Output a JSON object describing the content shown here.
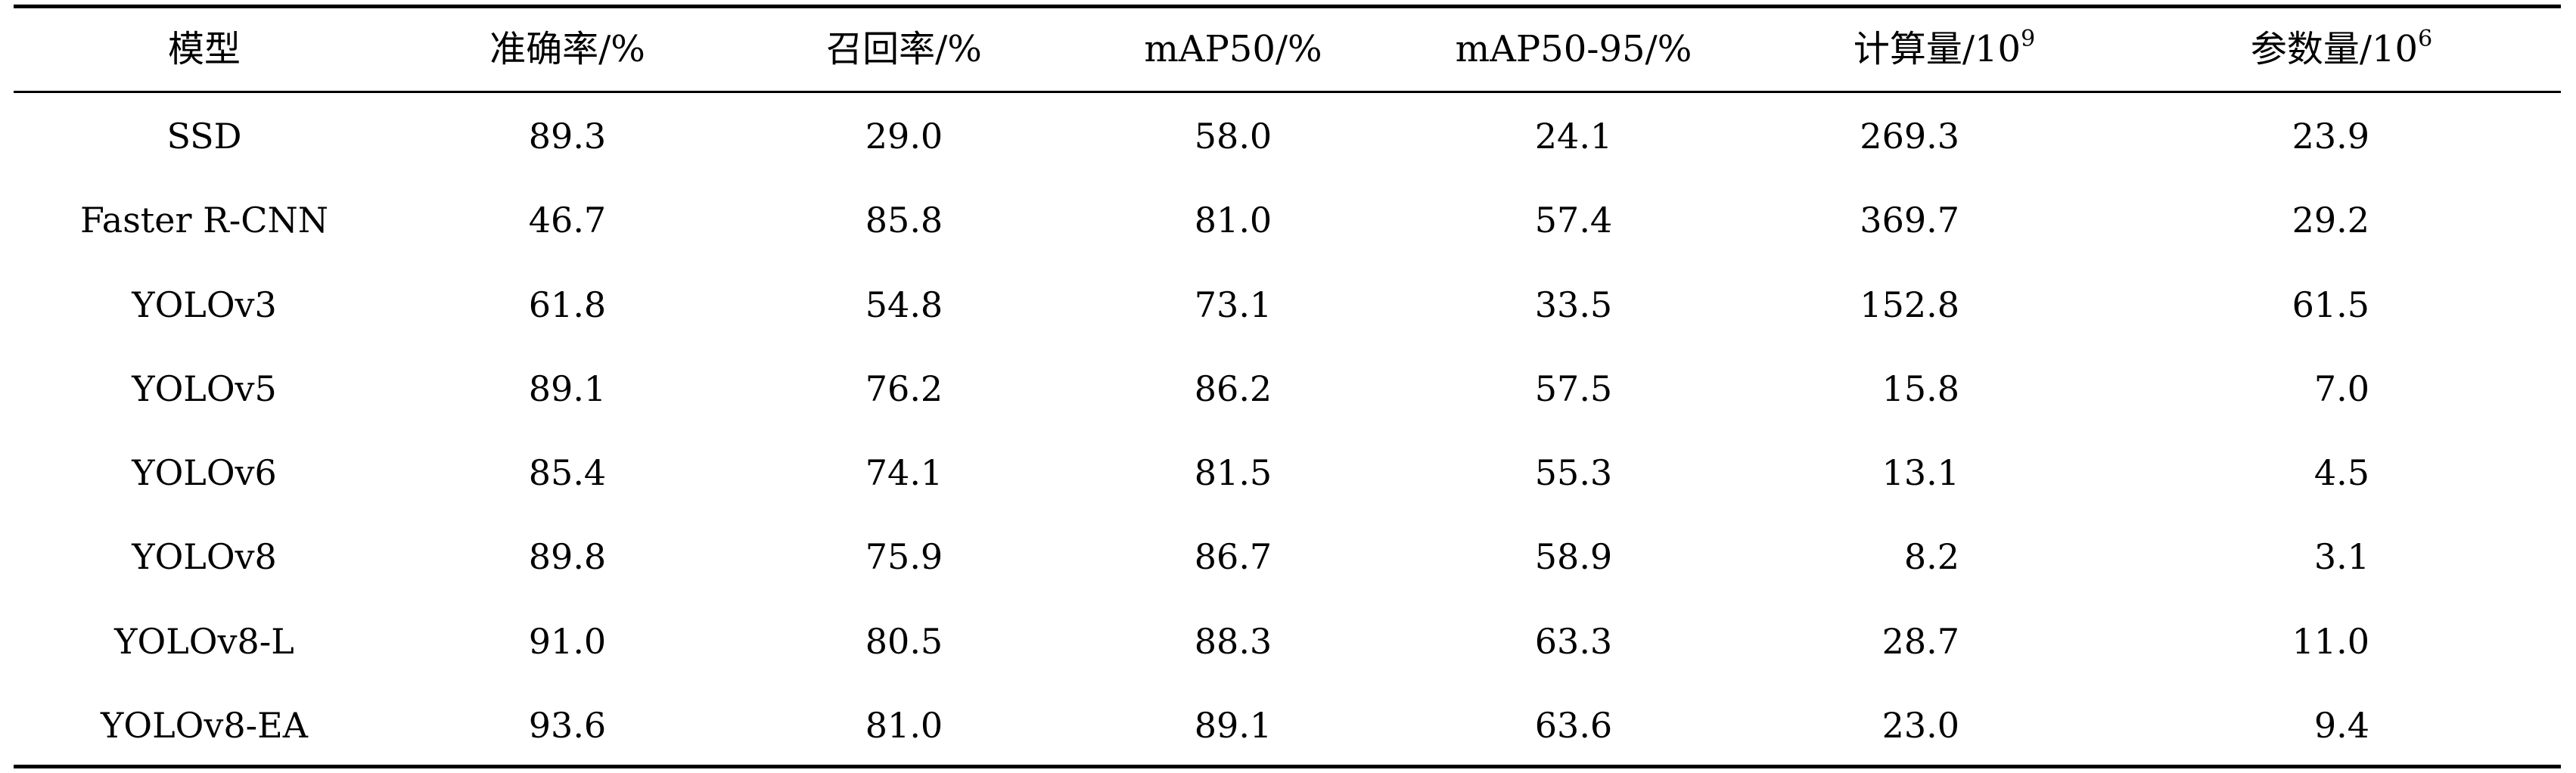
{
  "table": {
    "headers": [
      {
        "base": "模型",
        "sup": ""
      },
      {
        "base": "准确率/%",
        "sup": ""
      },
      {
        "base": "召回率/%",
        "sup": ""
      },
      {
        "base": "mAP50/%",
        "sup": ""
      },
      {
        "base": "mAP50-95/%",
        "sup": ""
      },
      {
        "base": "计算量/10",
        "sup": "9"
      },
      {
        "base": "参数量/10",
        "sup": "6"
      }
    ],
    "rows": [
      [
        "SSD",
        "89.3",
        "29.0",
        "58.0",
        "24.1",
        "269.3",
        "23.9"
      ],
      [
        "Faster R-CNN",
        "46.7",
        "85.8",
        "81.0",
        "57.4",
        "369.7",
        "29.2"
      ],
      [
        "YOLOv3",
        "61.8",
        "54.8",
        "73.1",
        "33.5",
        "152.8",
        "61.5"
      ],
      [
        "YOLOv5",
        "89.1",
        "76.2",
        "86.2",
        "57.5",
        "15.8",
        "7.0"
      ],
      [
        "YOLOv6",
        "85.4",
        "74.1",
        "81.5",
        "55.3",
        "13.1",
        "4.5"
      ],
      [
        "YOLOv8",
        "89.8",
        "75.9",
        "86.7",
        "58.9",
        "8.2",
        "3.1"
      ],
      [
        "YOLOv8-L",
        "91.0",
        "80.5",
        "88.3",
        "63.3",
        "28.7",
        "11.0"
      ],
      [
        "YOLOv8-EA",
        "93.6",
        "81.0",
        "89.1",
        "63.6",
        "23.0",
        "9.4"
      ]
    ]
  }
}
